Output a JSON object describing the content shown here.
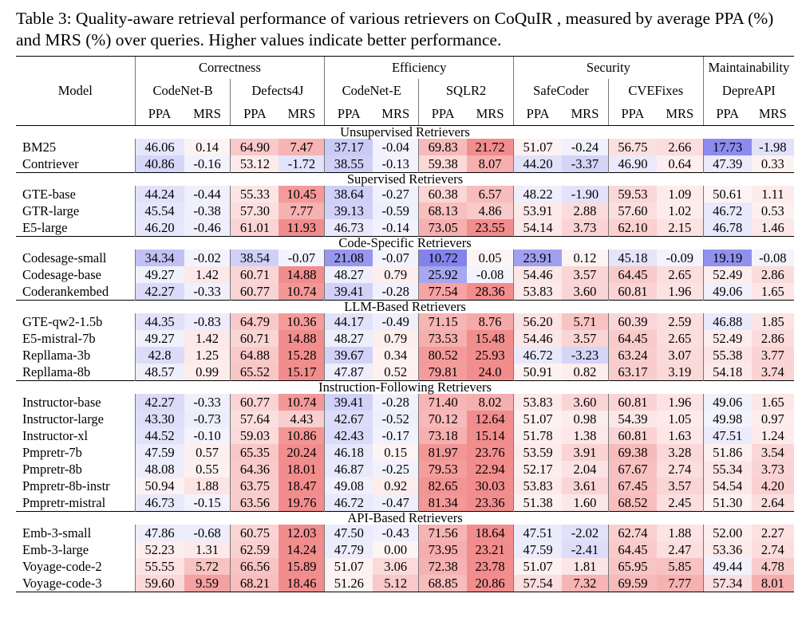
{
  "caption": "Table 3: Quality-aware retrieval performance of various retrievers on CoQuIR , measured by average PPA (%) and MRS (%) over queries. Higher values indicate better performance.",
  "header": {
    "model": "Model",
    "groups": [
      "Correctness",
      "Efficiency",
      "Security",
      "Maintainability"
    ],
    "datasets": [
      "CodeNet-B",
      "Defects4J",
      "CodeNet-E",
      "SQLR2",
      "SafeCoder",
      "CVEFixes",
      "DepreAPI"
    ],
    "metrics": [
      "PPA",
      "MRS",
      "PPA",
      "MRS",
      "PPA",
      "MRS",
      "PPA",
      "MRS",
      "PPA",
      "MRS",
      "PPA",
      "MRS",
      "PPA",
      "MRS"
    ]
  },
  "sections": [
    {
      "title": "Unsupervised Retrievers",
      "rows": [
        {
          "model": "BM25",
          "values": [
            "46.06",
            "0.14",
            "64.90",
            "7.47",
            "37.17",
            "-0.04",
            "69.83",
            "21.72",
            "51.07",
            "-0.24",
            "56.75",
            "2.66",
            "17.73",
            "-1.98"
          ]
        },
        {
          "model": "Contriever",
          "values": [
            "40.86",
            "-0.16",
            "53.12",
            "-1.72",
            "38.55",
            "-0.13",
            "59.38",
            "8.07",
            "44.20",
            "-3.37",
            "46.90",
            "0.64",
            "47.39",
            "0.33"
          ]
        }
      ]
    },
    {
      "title": "Supervised Retrievers",
      "rows": [
        {
          "model": "GTE-base",
          "values": [
            "44.24",
            "-0.44",
            "55.33",
            "10.45",
            "38.64",
            "-0.27",
            "60.38",
            "6.57",
            "48.22",
            "-1.90",
            "59.53",
            "1.09",
            "50.61",
            "1.11"
          ]
        },
        {
          "model": "GTR-large",
          "values": [
            "45.54",
            "-0.38",
            "57.30",
            "7.77",
            "39.13",
            "-0.59",
            "68.13",
            "4.86",
            "53.91",
            "2.88",
            "57.60",
            "1.02",
            "46.72",
            "0.53"
          ]
        },
        {
          "model": "E5-large",
          "values": [
            "46.20",
            "-0.46",
            "61.01",
            "11.93",
            "46.73",
            "-0.14",
            "73.05",
            "23.55",
            "54.14",
            "3.73",
            "62.10",
            "2.15",
            "46.78",
            "1.46"
          ]
        }
      ]
    },
    {
      "title": "Code-Specific Retrievers",
      "rows": [
        {
          "model": "Codesage-small",
          "values": [
            "34.34",
            "-0.02",
            "38.54",
            "-0.07",
            "21.08",
            "-0.07",
            "10.72",
            "0.05",
            "23.91",
            "0.12",
            "45.18",
            "-0.09",
            "19.19",
            "-0.08"
          ]
        },
        {
          "model": "Codesage-base",
          "values": [
            "49.27",
            "1.42",
            "60.71",
            "14.88",
            "48.27",
            "0.79",
            "25.92",
            "-0.08",
            "54.46",
            "3.57",
            "64.45",
            "2.65",
            "52.49",
            "2.86"
          ]
        },
        {
          "model": "Coderankembed",
          "values": [
            "42.27",
            "-0.33",
            "60.77",
            "10.74",
            "39.41",
            "-0.28",
            "77.54",
            "28.36",
            "53.83",
            "3.60",
            "60.81",
            "1.96",
            "49.06",
            "1.65"
          ]
        }
      ]
    },
    {
      "title": "LLM-Based Retrievers",
      "rows": [
        {
          "model": "GTE-qw2-1.5b",
          "values": [
            "44.35",
            "-0.83",
            "64.79",
            "10.36",
            "44.17",
            "-0.49",
            "71.15",
            "8.76",
            "56.20",
            "5.71",
            "60.39",
            "2.59",
            "46.88",
            "1.85"
          ]
        },
        {
          "model": "E5-mistral-7b",
          "values": [
            "49.27",
            "1.42",
            "60.71",
            "14.88",
            "48.27",
            "0.79",
            "73.53",
            "15.48",
            "54.46",
            "3.57",
            "64.45",
            "2.65",
            "52.49",
            "2.86"
          ]
        },
        {
          "model": "Repllama-3b",
          "values": [
            "42.8",
            "1.25",
            "64.88",
            "15.28",
            "39.67",
            "0.34",
            "80.52",
            "25.93",
            "46.72",
            "-3.23",
            "63.24",
            "3.07",
            "55.38",
            "3.77"
          ]
        },
        {
          "model": "Repllama-8b",
          "values": [
            "48.57",
            "0.99",
            "65.52",
            "15.17",
            "47.87",
            "0.52",
            "79.81",
            "24.0",
            "50.91",
            "0.82",
            "63.17",
            "3.19",
            "54.18",
            "3.74"
          ]
        }
      ]
    },
    {
      "title": "Instruction-Following Retrievers",
      "rows": [
        {
          "model": "Instructor-base",
          "values": [
            "42.27",
            "-0.33",
            "60.77",
            "10.74",
            "39.41",
            "-0.28",
            "71.40",
            "8.02",
            "53.83",
            "3.60",
            "60.81",
            "1.96",
            "49.06",
            "1.65"
          ]
        },
        {
          "model": "Instructor-large",
          "values": [
            "43.30",
            "-0.73",
            "57.64",
            "4.43",
            "42.67",
            "-0.52",
            "70.12",
            "12.64",
            "51.07",
            "0.98",
            "54.39",
            "1.05",
            "49.98",
            "0.97"
          ]
        },
        {
          "model": "Instructor-xl",
          "values": [
            "44.52",
            "-0.10",
            "59.03",
            "10.86",
            "42.43",
            "-0.17",
            "73.18",
            "15.14",
            "51.78",
            "1.38",
            "60.81",
            "1.63",
            "47.51",
            "1.24"
          ]
        },
        {
          "model": "Pmpretr-7b",
          "values": [
            "47.59",
            "0.57",
            "65.35",
            "20.24",
            "46.18",
            "0.15",
            "81.97",
            "23.76",
            "53.59",
            "3.91",
            "69.38",
            "3.28",
            "51.86",
            "3.54"
          ]
        },
        {
          "model": "Pmpretr-8b",
          "values": [
            "48.08",
            "0.55",
            "64.36",
            "18.01",
            "46.87",
            "-0.25",
            "79.53",
            "22.94",
            "52.17",
            "2.04",
            "67.67",
            "2.74",
            "55.34",
            "3.73"
          ]
        },
        {
          "model": "Pmpretr-8b-instr",
          "values": [
            "50.94",
            "1.88",
            "63.75",
            "18.47",
            "49.08",
            "0.92",
            "82.65",
            "30.03",
            "53.83",
            "3.61",
            "67.45",
            "3.57",
            "54.54",
            "4.20"
          ]
        },
        {
          "model": "Pmpretr-mistral",
          "values": [
            "46.73",
            "-0.15",
            "63.56",
            "19.76",
            "46.72",
            "-0.47",
            "81.34",
            "23.36",
            "51.38",
            "1.60",
            "68.52",
            "2.45",
            "51.30",
            "2.64"
          ]
        }
      ]
    },
    {
      "title": "API-Based Retrievers",
      "rows": [
        {
          "model": "Emb-3-small",
          "values": [
            "47.86",
            "-0.68",
            "60.75",
            "12.03",
            "47.50",
            "-0.43",
            "71.56",
            "18.64",
            "47.51",
            "-2.02",
            "62.74",
            "1.88",
            "52.00",
            "2.27"
          ]
        },
        {
          "model": "Emb-3-large",
          "values": [
            "52.23",
            "1.31",
            "62.59",
            "14.24",
            "47.79",
            "0.00",
            "73.95",
            "23.21",
            "47.59",
            "-2.41",
            "64.45",
            "2.47",
            "53.36",
            "2.74"
          ]
        },
        {
          "model": "Voyage-code-2",
          "values": [
            "55.55",
            "5.72",
            "66.56",
            "15.89",
            "51.07",
            "3.06",
            "72.38",
            "23.78",
            "51.07",
            "1.81",
            "65.95",
            "5.85",
            "49.44",
            "4.78"
          ]
        },
        {
          "model": "Voyage-code-3",
          "values": [
            "59.60",
            "9.59",
            "68.21",
            "18.46",
            "51.26",
            "5.12",
            "68.85",
            "20.86",
            "57.54",
            "7.32",
            "69.59",
            "7.77",
            "57.34",
            "8.01"
          ]
        }
      ]
    }
  ],
  "bold_cells": [
    {
      "model": "Pmpretr-7b",
      "col": 3
    },
    {
      "model": "Pmpretr-8b-instr",
      "col": 6
    },
    {
      "model": "Pmpretr-8b-instr",
      "col": 7
    },
    {
      "model": "Voyage-code-3",
      "col": 0
    },
    {
      "model": "Voyage-code-3",
      "col": 1
    },
    {
      "model": "Voyage-code-3",
      "col": 2
    },
    {
      "model": "Voyage-code-3",
      "col": 4
    },
    {
      "model": "Voyage-code-3",
      "col": 5
    },
    {
      "model": "Voyage-code-3",
      "col": 8
    },
    {
      "model": "Voyage-code-3",
      "col": 9
    },
    {
      "model": "Voyage-code-3",
      "col": 10
    },
    {
      "model": "Voyage-code-3",
      "col": 11
    },
    {
      "model": "Voyage-code-3",
      "col": 12
    },
    {
      "model": "Voyage-code-3",
      "col": 13
    }
  ],
  "colors": {
    "positive": "#f07a7a",
    "negative": "#6f6fe8",
    "ppa_center": 50,
    "ppa_span": 35,
    "mrs_span": 12
  }
}
